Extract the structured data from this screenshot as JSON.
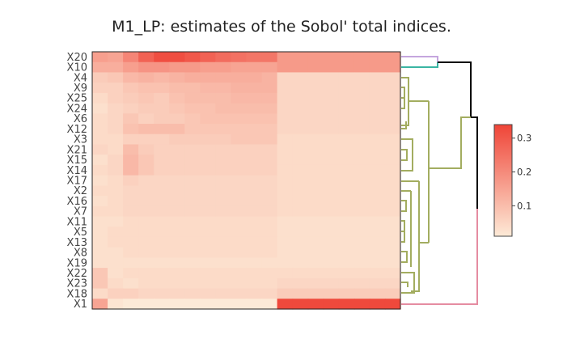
{
  "chart_data": {
    "type": "heatmap",
    "title": "M1_LP: estimates of the Sobol' total indices.",
    "xlabel": "",
    "ylabel": "",
    "rows": [
      "X20",
      "X10",
      "X4",
      "X9",
      "X25",
      "X24",
      "X6",
      "X12",
      "X3",
      "X21",
      "X15",
      "X14",
      "X17",
      "X2",
      "X16",
      "X7",
      "X11",
      "X5",
      "X13",
      "X8",
      "X19",
      "X22",
      "X23",
      "X18",
      "X1"
    ],
    "columns_count": 20,
    "colorbar": {
      "min": 0.01,
      "max": 0.34,
      "ticks": [
        0.1,
        0.2,
        0.3
      ],
      "tick_labels": [
        "0.1",
        "0.2",
        "0.3"
      ]
    },
    "colorscale": [
      "#fdead7",
      "#ef4437"
    ],
    "values": [
      [
        0.16,
        0.15,
        0.21,
        0.28,
        0.32,
        0.32,
        0.3,
        0.28,
        0.26,
        0.25,
        0.24,
        0.24,
        0.17,
        0.17,
        0.17,
        0.17,
        0.17,
        0.17,
        0.17,
        0.17
      ],
      [
        0.13,
        0.13,
        0.16,
        0.18,
        0.18,
        0.17,
        0.17,
        0.16,
        0.16,
        0.15,
        0.15,
        0.15,
        0.17,
        0.17,
        0.17,
        0.17,
        0.17,
        0.17,
        0.17,
        0.17
      ],
      [
        0.07,
        0.08,
        0.11,
        0.12,
        0.11,
        0.12,
        0.13,
        0.13,
        0.13,
        0.13,
        0.13,
        0.12,
        0.05,
        0.05,
        0.05,
        0.05,
        0.05,
        0.05,
        0.05,
        0.05
      ],
      [
        0.06,
        0.06,
        0.08,
        0.09,
        0.09,
        0.1,
        0.1,
        0.11,
        0.11,
        0.12,
        0.12,
        0.12,
        0.05,
        0.05,
        0.05,
        0.05,
        0.05,
        0.05,
        0.05,
        0.05
      ],
      [
        0.04,
        0.06,
        0.07,
        0.08,
        0.07,
        0.09,
        0.1,
        0.1,
        0.1,
        0.11,
        0.11,
        0.11,
        0.05,
        0.05,
        0.05,
        0.05,
        0.05,
        0.05,
        0.05,
        0.05
      ],
      [
        0.03,
        0.05,
        0.06,
        0.07,
        0.07,
        0.08,
        0.09,
        0.09,
        0.1,
        0.1,
        0.1,
        0.1,
        0.05,
        0.05,
        0.05,
        0.05,
        0.05,
        0.05,
        0.05,
        0.05
      ],
      [
        0.04,
        0.05,
        0.08,
        0.06,
        0.07,
        0.07,
        0.08,
        0.09,
        0.09,
        0.09,
        0.09,
        0.09,
        0.05,
        0.05,
        0.05,
        0.05,
        0.05,
        0.05,
        0.05,
        0.05
      ],
      [
        0.04,
        0.05,
        0.09,
        0.1,
        0.1,
        0.1,
        0.08,
        0.08,
        0.08,
        0.08,
        0.08,
        0.08,
        0.05,
        0.05,
        0.05,
        0.05,
        0.05,
        0.05,
        0.05,
        0.05
      ],
      [
        0.04,
        0.04,
        0.06,
        0.06,
        0.06,
        0.07,
        0.07,
        0.07,
        0.07,
        0.08,
        0.08,
        0.08,
        0.04,
        0.04,
        0.04,
        0.04,
        0.04,
        0.04,
        0.04,
        0.04
      ],
      [
        0.05,
        0.04,
        0.1,
        0.07,
        0.06,
        0.06,
        0.06,
        0.06,
        0.06,
        0.06,
        0.06,
        0.06,
        0.04,
        0.04,
        0.04,
        0.04,
        0.04,
        0.04,
        0.04,
        0.04
      ],
      [
        0.03,
        0.05,
        0.11,
        0.08,
        0.06,
        0.06,
        0.06,
        0.06,
        0.06,
        0.06,
        0.06,
        0.06,
        0.04,
        0.04,
        0.04,
        0.04,
        0.04,
        0.04,
        0.04,
        0.04
      ],
      [
        0.04,
        0.05,
        0.11,
        0.08,
        0.06,
        0.06,
        0.06,
        0.06,
        0.06,
        0.06,
        0.06,
        0.06,
        0.04,
        0.04,
        0.04,
        0.04,
        0.04,
        0.04,
        0.04,
        0.04
      ],
      [
        0.03,
        0.04,
        0.06,
        0.05,
        0.05,
        0.05,
        0.05,
        0.05,
        0.05,
        0.05,
        0.05,
        0.05,
        0.04,
        0.04,
        0.04,
        0.04,
        0.04,
        0.04,
        0.04,
        0.04
      ],
      [
        0.04,
        0.04,
        0.05,
        0.05,
        0.05,
        0.05,
        0.05,
        0.05,
        0.05,
        0.05,
        0.05,
        0.05,
        0.04,
        0.04,
        0.04,
        0.04,
        0.04,
        0.04,
        0.04,
        0.04
      ],
      [
        0.03,
        0.04,
        0.05,
        0.05,
        0.05,
        0.05,
        0.05,
        0.05,
        0.05,
        0.05,
        0.05,
        0.05,
        0.04,
        0.04,
        0.04,
        0.04,
        0.04,
        0.04,
        0.04,
        0.04
      ],
      [
        0.04,
        0.04,
        0.05,
        0.05,
        0.05,
        0.05,
        0.05,
        0.05,
        0.05,
        0.05,
        0.05,
        0.05,
        0.04,
        0.04,
        0.04,
        0.04,
        0.04,
        0.04,
        0.04,
        0.04
      ],
      [
        0.03,
        0.03,
        0.04,
        0.04,
        0.04,
        0.04,
        0.04,
        0.04,
        0.04,
        0.04,
        0.04,
        0.04,
        0.03,
        0.03,
        0.03,
        0.03,
        0.03,
        0.03,
        0.03,
        0.03
      ],
      [
        0.03,
        0.04,
        0.04,
        0.04,
        0.04,
        0.04,
        0.04,
        0.04,
        0.04,
        0.04,
        0.04,
        0.04,
        0.03,
        0.03,
        0.03,
        0.03,
        0.03,
        0.03,
        0.03,
        0.03
      ],
      [
        0.03,
        0.04,
        0.04,
        0.04,
        0.04,
        0.04,
        0.04,
        0.04,
        0.04,
        0.04,
        0.04,
        0.04,
        0.03,
        0.03,
        0.03,
        0.03,
        0.03,
        0.03,
        0.03,
        0.03
      ],
      [
        0.03,
        0.03,
        0.04,
        0.04,
        0.04,
        0.04,
        0.04,
        0.04,
        0.04,
        0.04,
        0.04,
        0.04,
        0.03,
        0.03,
        0.03,
        0.03,
        0.03,
        0.03,
        0.03,
        0.03
      ],
      [
        0.03,
        0.03,
        0.03,
        0.03,
        0.03,
        0.03,
        0.03,
        0.03,
        0.03,
        0.03,
        0.03,
        0.03,
        0.03,
        0.03,
        0.03,
        0.03,
        0.03,
        0.03,
        0.03,
        0.03
      ],
      [
        0.08,
        0.03,
        0.04,
        0.04,
        0.04,
        0.04,
        0.04,
        0.04,
        0.04,
        0.04,
        0.04,
        0.04,
        0.04,
        0.04,
        0.04,
        0.04,
        0.04,
        0.04,
        0.04,
        0.04
      ],
      [
        0.08,
        0.04,
        0.03,
        0.04,
        0.04,
        0.04,
        0.04,
        0.04,
        0.04,
        0.04,
        0.04,
        0.04,
        0.05,
        0.05,
        0.05,
        0.05,
        0.05,
        0.05,
        0.05,
        0.05
      ],
      [
        0.04,
        0.06,
        0.06,
        0.05,
        0.05,
        0.05,
        0.05,
        0.05,
        0.05,
        0.05,
        0.05,
        0.05,
        0.07,
        0.07,
        0.07,
        0.07,
        0.07,
        0.07,
        0.07,
        0.07
      ],
      [
        0.15,
        0.02,
        0.01,
        0.01,
        0.01,
        0.01,
        0.01,
        0.01,
        0.01,
        0.01,
        0.01,
        0.01,
        0.33,
        0.33,
        0.33,
        0.33,
        0.33,
        0.33,
        0.33,
        0.33
      ]
    ]
  }
}
